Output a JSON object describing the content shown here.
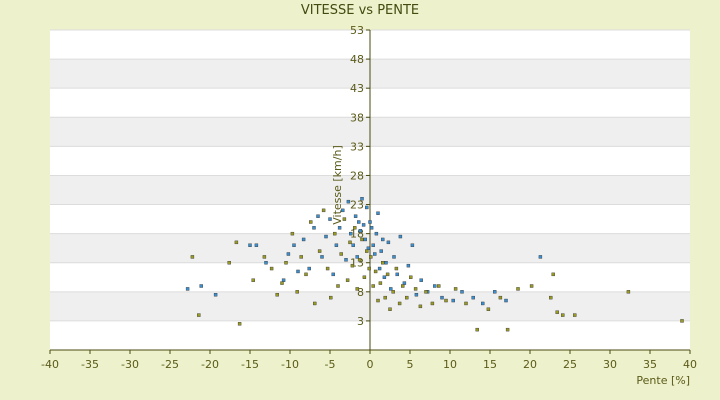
{
  "chart_data": {
    "type": "scatter",
    "title": "VITESSE vs PENTE",
    "xlabel": "Pente [%]",
    "ylabel": "Vitesse [km/h]",
    "xlim": [
      -40,
      40
    ],
    "ylim": [
      -2,
      53
    ],
    "x_ticks": [
      -40,
      -35,
      -30,
      -25,
      -20,
      -15,
      -10,
      -5,
      0,
      5,
      10,
      15,
      20,
      25,
      30,
      35,
      40
    ],
    "y_ticks": [
      3,
      8,
      13,
      18,
      23,
      28,
      33,
      38,
      43,
      48,
      53
    ],
    "grid": "horizontal bands",
    "legend": "none",
    "colors": {
      "background": "#eef2cc",
      "band_light": "#ffffff",
      "band_dark": "#efefef",
      "axis": "#4a4a10",
      "point_blue": "#3a8fd0",
      "point_olive": "#9a9a20"
    },
    "series": [
      {
        "color": "blue",
        "points": [
          [
            -22.8,
            8.5
          ],
          [
            -21.1,
            9
          ],
          [
            -19.3,
            7.5
          ],
          [
            -15.0,
            16
          ],
          [
            -14.2,
            16
          ],
          [
            -13,
            13
          ],
          [
            -10.8,
            10
          ],
          [
            -10.2,
            14.5
          ],
          [
            -9.5,
            16
          ],
          [
            -9.0,
            11.5
          ],
          [
            -8.3,
            17
          ],
          [
            -7.6,
            12
          ],
          [
            -7.0,
            19
          ],
          [
            -6.5,
            21
          ],
          [
            -6.0,
            14
          ],
          [
            -5.5,
            17.5
          ],
          [
            -5.0,
            20.5
          ],
          [
            -4.6,
            11
          ],
          [
            -4.2,
            16
          ],
          [
            -3.8,
            19
          ],
          [
            -3.4,
            22
          ],
          [
            -3.0,
            13.5
          ],
          [
            -2.7,
            23.5
          ],
          [
            -2.4,
            18
          ],
          [
            -2.1,
            16
          ],
          [
            -1.8,
            21
          ],
          [
            -1.6,
            14
          ],
          [
            -1.4,
            20
          ],
          [
            -1.2,
            18.5
          ],
          [
            -1.0,
            24
          ],
          [
            -0.8,
            19.5
          ],
          [
            -0.6,
            17
          ],
          [
            -0.4,
            22.5
          ],
          [
            -0.2,
            15.5
          ],
          [
            0.0,
            20
          ],
          [
            0.2,
            19
          ],
          [
            0.4,
            16
          ],
          [
            0.6,
            14.5
          ],
          [
            0.8,
            18
          ],
          [
            1.0,
            21.5
          ],
          [
            1.2,
            12
          ],
          [
            1.4,
            15
          ],
          [
            1.6,
            17
          ],
          [
            1.8,
            10.5
          ],
          [
            2.0,
            13
          ],
          [
            2.3,
            16.5
          ],
          [
            2.6,
            8.5
          ],
          [
            3.0,
            14
          ],
          [
            3.4,
            11
          ],
          [
            3.8,
            17.5
          ],
          [
            4.3,
            9.5
          ],
          [
            4.8,
            12.5
          ],
          [
            5.3,
            16
          ],
          [
            5.8,
            7.5
          ],
          [
            6.4,
            10
          ],
          [
            7.2,
            8
          ],
          [
            8.1,
            9
          ],
          [
            9.0,
            7
          ],
          [
            10.4,
            6.5
          ],
          [
            11.5,
            8
          ],
          [
            12.9,
            7
          ],
          [
            14.1,
            6
          ],
          [
            15.6,
            8
          ],
          [
            17.0,
            6.5
          ],
          [
            21.3,
            14
          ]
        ]
      },
      {
        "color": "olive",
        "points": [
          [
            -22.2,
            14
          ],
          [
            -21.4,
            4
          ],
          [
            -17.6,
            13
          ],
          [
            -16.7,
            16.5
          ],
          [
            -16.3,
            2.5
          ],
          [
            -14.6,
            10
          ],
          [
            -13.2,
            14
          ],
          [
            -12.3,
            12
          ],
          [
            -11.6,
            7.5
          ],
          [
            -11.0,
            9.5
          ],
          [
            -10.5,
            13
          ],
          [
            -9.7,
            18
          ],
          [
            -9.1,
            8
          ],
          [
            -8.6,
            14
          ],
          [
            -8.0,
            11
          ],
          [
            -7.4,
            20
          ],
          [
            -6.9,
            6
          ],
          [
            -6.3,
            15
          ],
          [
            -5.8,
            22
          ],
          [
            -5.3,
            12
          ],
          [
            -4.9,
            7
          ],
          [
            -4.4,
            18
          ],
          [
            -4.0,
            9
          ],
          [
            -3.6,
            14.5
          ],
          [
            -3.2,
            20.5
          ],
          [
            -2.8,
            10
          ],
          [
            -2.5,
            16.5
          ],
          [
            -2.2,
            12.5
          ],
          [
            -1.9,
            19
          ],
          [
            -1.6,
            8.5
          ],
          [
            -1.3,
            13.5
          ],
          [
            -1.0,
            17
          ],
          [
            -0.7,
            10.5
          ],
          [
            -0.4,
            15
          ],
          [
            -0.1,
            12
          ],
          [
            0.1,
            14
          ],
          [
            0.4,
            9
          ],
          [
            0.7,
            11.5
          ],
          [
            1.0,
            6.5
          ],
          [
            1.3,
            9.5
          ],
          [
            1.6,
            13
          ],
          [
            1.9,
            7
          ],
          [
            2.2,
            11
          ],
          [
            2.5,
            5
          ],
          [
            2.9,
            8
          ],
          [
            3.3,
            12
          ],
          [
            3.7,
            6
          ],
          [
            4.1,
            9
          ],
          [
            4.6,
            7
          ],
          [
            5.1,
            10.5
          ],
          [
            5.7,
            8.5
          ],
          [
            6.3,
            5.5
          ],
          [
            7.0,
            8
          ],
          [
            7.8,
            6
          ],
          [
            8.6,
            9
          ],
          [
            9.5,
            6.5
          ],
          [
            10.7,
            8.5
          ],
          [
            12.0,
            6
          ],
          [
            13.4,
            1.5
          ],
          [
            14.8,
            5
          ],
          [
            16.3,
            7
          ],
          [
            17.2,
            1.5
          ],
          [
            18.5,
            8.5
          ],
          [
            20.2,
            9
          ],
          [
            22.6,
            7
          ],
          [
            22.9,
            11
          ],
          [
            23.4,
            4.5
          ],
          [
            24.1,
            4
          ],
          [
            25.6,
            4
          ],
          [
            32.3,
            8
          ],
          [
            39.0,
            3
          ]
        ]
      }
    ]
  }
}
